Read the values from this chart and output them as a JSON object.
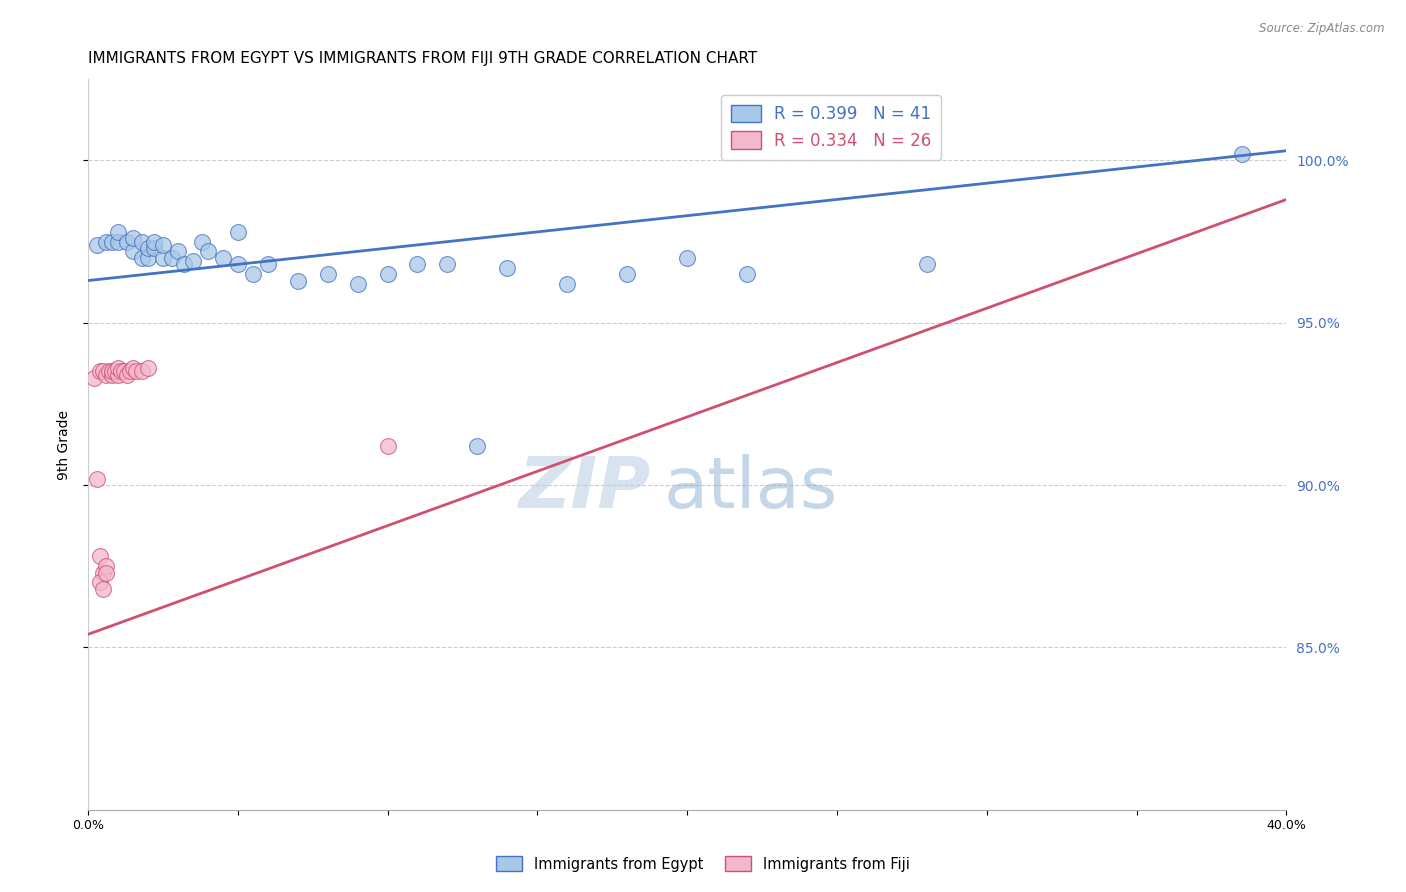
{
  "title": "IMMIGRANTS FROM EGYPT VS IMMIGRANTS FROM FIJI 9TH GRADE CORRELATION CHART",
  "source": "Source: ZipAtlas.com",
  "xlabel_blue": "Immigrants from Egypt",
  "xlabel_pink": "Immigrants from Fiji",
  "ylabel": "9th Grade",
  "legend_blue_r": "R = 0.399",
  "legend_blue_n": "N = 41",
  "legend_pink_r": "R = 0.334",
  "legend_pink_n": "N = 26",
  "xlim": [
    0.0,
    0.4
  ],
  "ylim": [
    0.8,
    1.025
  ],
  "yticks": [
    0.85,
    0.9,
    0.95,
    1.0
  ],
  "ytick_labels": [
    "85.0%",
    "90.0%",
    "95.0%",
    "100.0%"
  ],
  "xticks": [
    0.0,
    0.05,
    0.1,
    0.15,
    0.2,
    0.25,
    0.3,
    0.35,
    0.4
  ],
  "xtick_labels": [
    "0.0%",
    "",
    "",
    "",
    "",
    "",
    "",
    "",
    "40.0%"
  ],
  "color_blue": "#a8c8e8",
  "color_pink": "#f4b8cc",
  "line_color_blue": "#4472c4",
  "line_color_pink": "#d05070",
  "blue_scatter_x": [
    0.003,
    0.006,
    0.008,
    0.01,
    0.01,
    0.013,
    0.015,
    0.015,
    0.018,
    0.018,
    0.02,
    0.02,
    0.022,
    0.022,
    0.025,
    0.025,
    0.028,
    0.03,
    0.032,
    0.035,
    0.038,
    0.04,
    0.045,
    0.05,
    0.055,
    0.06,
    0.07,
    0.08,
    0.09,
    0.1,
    0.11,
    0.12,
    0.14,
    0.16,
    0.18,
    0.2,
    0.22,
    0.13,
    0.05,
    0.28,
    0.385
  ],
  "blue_scatter_y": [
    0.974,
    0.975,
    0.975,
    0.975,
    0.978,
    0.975,
    0.972,
    0.976,
    0.97,
    0.975,
    0.97,
    0.973,
    0.973,
    0.975,
    0.97,
    0.974,
    0.97,
    0.972,
    0.968,
    0.969,
    0.975,
    0.972,
    0.97,
    0.978,
    0.965,
    0.968,
    0.963,
    0.965,
    0.962,
    0.965,
    0.968,
    0.968,
    0.967,
    0.962,
    0.965,
    0.97,
    0.965,
    0.912,
    0.968,
    0.968,
    1.002
  ],
  "pink_scatter_x": [
    0.002,
    0.004,
    0.005,
    0.006,
    0.007,
    0.008,
    0.008,
    0.009,
    0.01,
    0.01,
    0.011,
    0.012,
    0.013,
    0.014,
    0.015,
    0.016,
    0.018,
    0.02,
    0.003,
    0.004,
    0.005,
    0.006,
    0.004,
    0.005,
    0.006,
    0.1
  ],
  "pink_scatter_y": [
    0.933,
    0.935,
    0.935,
    0.934,
    0.935,
    0.934,
    0.935,
    0.935,
    0.934,
    0.936,
    0.935,
    0.935,
    0.934,
    0.935,
    0.936,
    0.935,
    0.935,
    0.936,
    0.902,
    0.878,
    0.873,
    0.875,
    0.87,
    0.868,
    0.873,
    0.912
  ],
  "blue_trend_x": [
    0.0,
    0.4
  ],
  "blue_trend_y": [
    0.963,
    1.003
  ],
  "pink_trend_x": [
    0.0,
    0.4
  ],
  "pink_trend_y": [
    0.854,
    0.988
  ],
  "watermark_zip": "ZIP",
  "watermark_atlas": "atlas",
  "title_fontsize": 11,
  "axis_label_fontsize": 10,
  "tick_fontsize": 9,
  "right_tick_color": "#4472c4",
  "grid_color": "#cccccc",
  "background_color": "#ffffff"
}
